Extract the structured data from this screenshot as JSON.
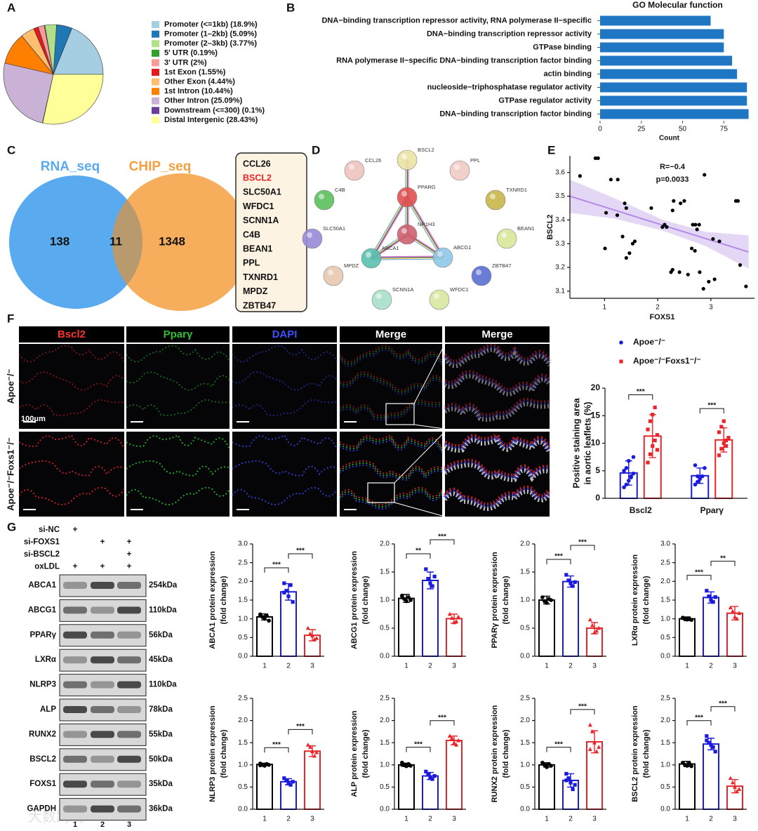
{
  "chart_data": [
    {
      "type": "pie",
      "panel": "A",
      "categories": [
        "Promoter (<=1kb) (18.9%)",
        "Promoter (1–2kb) (5.09%)",
        "Promoter (2–3kb) (3.77%)",
        "5' UTR (0.19%)",
        "3' UTR (2%)",
        "1st Exon (1.55%)",
        "Other Exon (4.44%)",
        "1st Intron (10.44%)",
        "Other Intron (25.09%)",
        "Downstream (<=300) (0.1%)",
        "Distal Intergenic (28.43%)"
      ],
      "values": [
        18.9,
        5.09,
        3.77,
        0.19,
        2,
        1.55,
        4.44,
        10.44,
        25.09,
        0.1,
        28.43
      ],
      "colors": [
        "#a6cee3",
        "#1f78b4",
        "#b2df8a",
        "#33a02c",
        "#fb9a99",
        "#e31a1c",
        "#fdbf6f",
        "#ff7f00",
        "#cab2d6",
        "#6a3d9a",
        "#ffff99"
      ]
    },
    {
      "type": "bar",
      "orientation": "horizontal",
      "panel": "B",
      "title": "GO Molecular function",
      "categories": [
        "DNA−binding transcription repressor activity, RNA polymerase II−specific",
        "DNA−binding transcription repressor activity",
        "GTPase binding",
        "RNA polymerase II−specific DNA−binding transcription factor binding",
        "actin binding",
        "nucleoside−triphosphatase regulator activity",
        "GTPase regulator activity",
        "DNA−binding transcription factor binding"
      ],
      "values": [
        67,
        75,
        75,
        80,
        83,
        89,
        89,
        90
      ],
      "color": "#1f77c4",
      "xlim": [
        0,
        94
      ],
      "xticks": [
        0,
        25,
        50,
        75
      ],
      "xlabel": "Count"
    },
    {
      "type": "scatter",
      "panel": "E",
      "x": [
        0.54,
        0.83,
        0.88,
        1.12,
        1.25,
        1.03,
        1.24,
        1.38,
        1.41,
        1.01,
        1.34,
        1.53,
        1.57,
        1.41,
        1.47,
        1.88,
        2.28,
        2.43,
        2.5,
        2.3,
        2.13,
        2.09,
        2.17,
        2.28,
        2.25,
        2.41,
        2.66,
        2.71,
        2.78,
        2.74,
        2.88,
        2.64,
        2.7,
        2.57,
        2.79,
        2.86,
        2.96,
        3.07,
        3.16,
        3.04,
        3.47,
        3.51,
        3.55,
        3.66
      ],
      "y": [
        3.585,
        3.66,
        3.66,
        3.57,
        3.57,
        3.43,
        3.42,
        3.47,
        3.45,
        3.28,
        3.33,
        3.3,
        3.31,
        3.24,
        3.26,
        3.45,
        3.44,
        3.47,
        3.48,
        3.48,
        3.38,
        3.37,
        3.37,
        3.19,
        3.18,
        3.18,
        3.38,
        3.38,
        3.38,
        3.36,
        3.59,
        3.28,
        3.27,
        3.17,
        3.18,
        3.11,
        3.14,
        3.15,
        3.31,
        3.32,
        3.48,
        3.48,
        3.21,
        3.12
      ],
      "color": "#000000",
      "fit": {
        "x": [
          0.35,
          3.71
        ],
        "y": [
          3.5,
          3.265
        ],
        "color": "#b48be6"
      },
      "band": {
        "x": [
          0.35,
          1.2,
          2.1,
          2.9,
          3.71
        ],
        "lower": [
          3.43,
          3.405,
          3.355,
          3.29,
          3.195
        ],
        "upper": [
          3.57,
          3.49,
          3.4,
          3.35,
          3.335
        ],
        "color": "#d9c6f2"
      },
      "xlim": [
        0.35,
        3.82
      ],
      "ylim": [
        3.07,
        3.67
      ],
      "xticks": [
        1,
        2,
        3
      ],
      "yticks": [
        3.1,
        3.2,
        3.3,
        3.4,
        3.5,
        3.6
      ],
      "xlabel": "FOXS1",
      "ylabel": "BSCL2",
      "annotations": [
        "R=−0.4",
        "p=0.0033"
      ]
    },
    {
      "type": "bar",
      "categories": [
        "Bscl2",
        "Pparγ"
      ],
      "series": [
        {
          "name": "Apoe⁻/⁻",
          "color": "#1a1adc",
          "marker": "circle",
          "values": [
            4.6,
            4.1
          ],
          "errors": [
            2.2,
            1.4
          ],
          "points": [
            [
              2.0,
              2.5,
              3.2,
              4.0,
              4.5,
              5.0,
              5.5,
              6.8,
              3.8,
              7.5
            ],
            [
              2.5,
              3.0,
              3.5,
              4.0,
              5.5,
              6.0,
              4.0
            ]
          ]
        },
        {
          "name": "Apoe⁻/⁻Foxs1⁻/⁻",
          "color": "#e8262a",
          "marker": "square",
          "values": [
            11.3,
            10.6
          ],
          "errors": [
            3.9,
            2.2
          ],
          "points": [
            [
              6.5,
              8.0,
              9.5,
              10.5,
              11.5,
              12.5,
              14.0,
              15.2,
              16.5,
              8.8
            ],
            [
              7.8,
              9.0,
              10.0,
              10.5,
              11.0,
              12.0,
              13.0,
              14.0,
              9.5
            ]
          ]
        }
      ],
      "ylim": [
        0,
        20
      ],
      "yticks": [
        0,
        5,
        10,
        15,
        20
      ],
      "ylabel": [
        "Positive staining area",
        "in aortic leaflets (%)"
      ],
      "significance": [
        "***",
        "***"
      ]
    },
    {
      "type": "bar",
      "categories": [
        "1",
        "2",
        "3"
      ],
      "values": [
        1.05,
        1.72,
        0.56
      ],
      "errors": [
        0.08,
        0.22,
        0.15
      ],
      "points": [
        [
          1.12,
          1.05,
          1.0,
          1.08,
          0.95,
          1.1
        ],
        [
          1.95,
          1.75,
          1.6,
          1.9,
          1.45,
          1.7
        ],
        [
          0.75,
          0.6,
          0.55,
          0.45,
          0.48
        ]
      ],
      "colors": [
        "#000000",
        "#1a1adc",
        "#e8262a"
      ],
      "markers": [
        "circle",
        "square",
        "triangle"
      ],
      "ylim": [
        0,
        3
      ],
      "yticks": [
        {
          "value": 0,
          "label": "0.0"
        },
        0.5,
        {
          "value": 1,
          "label": "1.0"
        },
        1.5,
        {
          "value": 2,
          "label": "2.0"
        },
        2.5,
        {
          "value": 3,
          "label": "3.0"
        }
      ],
      "ylabel": [
        "ABCA1  protein expression",
        "(fold change)"
      ],
      "significance": [
        "***",
        "***"
      ]
    },
    {
      "type": "bar",
      "categories": [
        "1",
        "2",
        "3"
      ],
      "values": [
        1.03,
        1.35,
        0.67
      ],
      "errors": [
        0.07,
        0.15,
        0.08
      ],
      "points": [
        [
          1.08,
          1.02,
          0.98,
          1.05,
          1.0,
          1.07
        ],
        [
          1.55,
          1.38,
          1.3,
          1.25,
          1.42
        ],
        [
          0.75,
          0.68,
          0.6,
          0.62,
          0.7
        ]
      ],
      "colors": [
        "#000000",
        "#1a1adc",
        "#e8262a"
      ],
      "markers": [
        "circle",
        "square",
        "triangle"
      ],
      "ylim": [
        0,
        2
      ],
      "yticks": [
        {
          "value": 0,
          "label": "0.0"
        },
        0.5,
        {
          "value": 1,
          "label": "1.0"
        },
        1.5,
        {
          "value": 2,
          "label": "2.0"
        }
      ],
      "ylabel": [
        "ABCG1  protein expression",
        "(fold change)"
      ],
      "significance": [
        "**",
        "***"
      ]
    },
    {
      "type": "bar",
      "categories": [
        "1",
        "2",
        "3"
      ],
      "values": [
        1.0,
        1.33,
        0.5
      ],
      "errors": [
        0.07,
        0.1,
        0.1
      ],
      "points": [
        [
          1.05,
          0.98,
          0.95,
          1.02,
          1.0
        ],
        [
          1.45,
          1.35,
          1.3,
          1.25,
          1.32
        ],
        [
          0.65,
          0.55,
          0.42,
          0.45,
          0.5
        ]
      ],
      "colors": [
        "#000000",
        "#1a1adc",
        "#e8262a"
      ],
      "markers": [
        "circle",
        "square",
        "triangle"
      ],
      "ylim": [
        0,
        2
      ],
      "yticks": [
        {
          "value": 0,
          "label": "0.0"
        },
        0.5,
        {
          "value": 1,
          "label": "1.0"
        },
        1.5,
        {
          "value": 2,
          "label": "2.0"
        }
      ],
      "ylabel": [
        "PPARγ  protein expression",
        "(fold change)"
      ],
      "significance": [
        "***",
        "***"
      ]
    },
    {
      "type": "bar",
      "categories": [
        "1",
        "2",
        "3"
      ],
      "values": [
        1.0,
        1.57,
        1.15
      ],
      "errors": [
        0.05,
        0.15,
        0.18
      ],
      "points": [
        [
          1.02,
          1.0,
          0.98,
          1.0,
          0.97,
          1.03
        ],
        [
          1.75,
          1.6,
          1.5,
          1.45,
          1.58
        ],
        [
          1.3,
          1.2,
          1.05,
          1.0,
          1.15
        ]
      ],
      "colors": [
        "#000000",
        "#1a1adc",
        "#e8262a"
      ],
      "markers": [
        "circle",
        "square",
        "triangle"
      ],
      "ylim": [
        0,
        3
      ],
      "yticks": [
        {
          "value": 0,
          "label": "0.0"
        },
        0.5,
        {
          "value": 1,
          "label": "1.0"
        },
        1.5,
        {
          "value": 2,
          "label": "2.0"
        },
        2.5,
        {
          "value": 3,
          "label": "3.0"
        }
      ],
      "ylabel": [
        "LXRα  protein expression",
        "(fold change)"
      ],
      "significance": [
        "***",
        "**"
      ]
    },
    {
      "type": "bar",
      "categories": [
        "1",
        "2",
        "3"
      ],
      "values": [
        1.01,
        0.62,
        1.31
      ],
      "errors": [
        0.03,
        0.07,
        0.12
      ],
      "points": [
        [
          1.03,
          1.0,
          0.98,
          1.02,
          1.0,
          0.99
        ],
        [
          0.7,
          0.65,
          0.6,
          0.55,
          0.62
        ],
        [
          1.45,
          1.4,
          1.3,
          1.2,
          1.28
        ]
      ],
      "colors": [
        "#000000",
        "#1a1adc",
        "#e8262a"
      ],
      "markers": [
        "circle",
        "square",
        "triangle"
      ],
      "ylim": [
        0,
        2.5
      ],
      "yticks": [
        {
          "value": 0,
          "label": "0.0"
        },
        0.5,
        {
          "value": 1,
          "label": "1.0"
        },
        1.5,
        {
          "value": 2,
          "label": "2.0"
        },
        2.5
      ],
      "ylabel": [
        "NLRP3  protein expression",
        "(fold change)"
      ],
      "significance": [
        "***",
        "***"
      ]
    },
    {
      "type": "bar",
      "categories": [
        "1",
        "2",
        "3"
      ],
      "values": [
        1.0,
        0.75,
        1.55
      ],
      "errors": [
        0.04,
        0.08,
        0.1
      ],
      "points": [
        [
          1.05,
          1.0,
          0.97,
          1.02,
          0.98,
          1.0
        ],
        [
          0.85,
          0.78,
          0.7,
          0.68,
          0.75
        ],
        [
          1.65,
          1.6,
          1.5,
          1.45,
          1.55
        ]
      ],
      "colors": [
        "#000000",
        "#1a1adc",
        "#e8262a"
      ],
      "markers": [
        "circle",
        "square",
        "triangle"
      ],
      "ylim": [
        0,
        2.5
      ],
      "yticks": [
        {
          "value": 0,
          "label": "0.0"
        },
        0.5,
        {
          "value": 1,
          "label": "1.0"
        },
        1.5,
        {
          "value": 2,
          "label": "2.0"
        },
        2.5
      ],
      "ylabel": [
        "ALP  protein expression",
        "(fold change)"
      ],
      "significance": [
        "***",
        "***"
      ]
    },
    {
      "type": "bar",
      "categories": [
        "1",
        "2",
        "3"
      ],
      "values": [
        1.0,
        0.65,
        1.52
      ],
      "errors": [
        0.05,
        0.15,
        0.25
      ],
      "points": [
        [
          1.05,
          1.0,
          0.95,
          1.02,
          0.98
        ],
        [
          0.8,
          0.7,
          0.6,
          0.45,
          0.55,
          0.65
        ],
        [
          1.9,
          1.75,
          1.5,
          1.3,
          1.4,
          1.35
        ]
      ],
      "colors": [
        "#000000",
        "#1a1adc",
        "#e8262a"
      ],
      "markers": [
        "circle",
        "square",
        "triangle"
      ],
      "ylim": [
        0,
        2.5
      ],
      "yticks": [
        {
          "value": 0,
          "label": "0.0"
        },
        0.5,
        {
          "value": 1,
          "label": "1.0"
        },
        1.5,
        {
          "value": 2,
          "label": "2.0"
        },
        2.5
      ],
      "ylabel": [
        "RUNX2  protein expression",
        "(fold change)"
      ],
      "significance": [
        "***",
        "***"
      ]
    },
    {
      "type": "bar",
      "categories": [
        "1",
        "2",
        "3"
      ],
      "values": [
        1.02,
        1.47,
        0.52
      ],
      "errors": [
        0.06,
        0.13,
        0.15
      ],
      "points": [
        [
          1.05,
          1.0,
          0.98,
          1.03,
          0.97
        ],
        [
          1.65,
          1.5,
          1.45,
          1.4,
          1.3,
          1.55
        ],
        [
          0.7,
          0.6,
          0.5,
          0.4,
          0.45
        ]
      ],
      "colors": [
        "#000000",
        "#1a1adc",
        "#e8262a"
      ],
      "markers": [
        "circle",
        "square",
        "triangle"
      ],
      "ylim": [
        0,
        2.5
      ],
      "yticks": [
        {
          "value": 0,
          "label": "0.0"
        },
        0.5,
        {
          "value": 1,
          "label": "1.0"
        },
        1.5,
        {
          "value": 2,
          "label": "2.0"
        },
        2.5
      ],
      "ylabel": [
        "BSCL2  protein expression",
        "(fold change)"
      ],
      "significance": [
        "***",
        "***"
      ]
    }
  ],
  "panel_c": {
    "letter": "C",
    "sets": [
      {
        "name": "RNA_seq",
        "color": "#5aaaf0"
      },
      {
        "name": "CHIP_seq",
        "color": "#f5a040"
      }
    ],
    "counts": [
      138,
      11,
      1348
    ],
    "genes": [
      {
        "name": "CCL26"
      },
      {
        "name": "BSCL2",
        "color": "#e8262a"
      },
      {
        "name": "SLC50A1"
      },
      {
        "name": "WFDC1"
      },
      {
        "name": "SCNN1A"
      },
      {
        "name": "C4B"
      },
      {
        "name": "BEAN1"
      },
      {
        "name": "PPL"
      },
      {
        "name": "TXNRD1"
      },
      {
        "name": "MPDZ"
      },
      {
        "name": "ZBTB47"
      }
    ]
  },
  "panel_d": {
    "letter": "D",
    "nodes": [
      {
        "label": "CCL26",
        "color": "#f0c4be"
      },
      {
        "label": "BSCL2",
        "color": "#ece4a4"
      },
      {
        "label": "PPL",
        "color": "#f0ccc4"
      },
      {
        "label": "C4B",
        "color": "#5cc05c"
      },
      {
        "label": "PPARG",
        "color": "#e05050"
      },
      {
        "label": "TXNRD1",
        "color": "#c8b84a"
      },
      {
        "label": "SLC50A1",
        "color": "#9a8ad8"
      },
      {
        "label": "NR1H3",
        "color": "#d06070"
      },
      {
        "label": "BEAN1",
        "color": "#d8e89a"
      },
      {
        "label": "ABCA1",
        "color": "#5ac0b0"
      },
      {
        "label": "ABCG1",
        "color": "#90c8e8"
      },
      {
        "label": "MPDZ",
        "color": "#e8c8b0"
      },
      {
        "label": "ZBTB47",
        "color": "#5a70d0"
      },
      {
        "label": "SCNN1A",
        "color": "#a8e0c8"
      },
      {
        "label": "WFDC1",
        "color": "#d8e8a0"
      }
    ]
  },
  "panel_f": {
    "letter": "F",
    "columns": [
      {
        "label": "Bscl2",
        "color": "#ff3030"
      },
      {
        "label": "Pparγ",
        "color": "#30c030"
      },
      {
        "label": "DAPI",
        "color": "#4050ff"
      },
      {
        "label": "Merge",
        "color": "#ffffff"
      },
      {
        "label": "Merge",
        "color": "#ffffff"
      }
    ],
    "rows": [
      "Apoe⁻/⁻",
      "Apoe⁻/⁻Foxs1⁻/⁻"
    ],
    "scale_bar": "100μm"
  },
  "panel_g": {
    "letter": "G",
    "treatments": [
      {
        "label": "si-NC",
        "marks": [
          "+",
          null,
          null
        ]
      },
      {
        "label": "si-FOXS1",
        "marks": [
          null,
          "+",
          "+"
        ]
      },
      {
        "label": "si-BSCL2",
        "marks": [
          null,
          null,
          "+"
        ]
      },
      {
        "label": "oxLDL",
        "marks": [
          "+",
          "+",
          "+"
        ]
      }
    ],
    "proteins": [
      {
        "name": "ABCA1",
        "size": "254kDa"
      },
      {
        "name": "ABCG1",
        "size": "110kDa"
      },
      {
        "name": "PPARγ",
        "size": "56kDa"
      },
      {
        "name": "LXRα",
        "size": "45kDa"
      },
      {
        "name": "NLRP3",
        "size": "110kDa"
      },
      {
        "name": "ALP",
        "size": "78kDa"
      },
      {
        "name": "RUNX2",
        "size": "55kDa"
      },
      {
        "name": "BSCL2",
        "size": "50kDa"
      },
      {
        "name": "FOXS1",
        "size": "35kDa"
      },
      {
        "name": "GAPDH",
        "size": "36kDa"
      }
    ],
    "lanes": [
      "1",
      "2",
      "3"
    ]
  },
  "watermark": "大数跨境"
}
